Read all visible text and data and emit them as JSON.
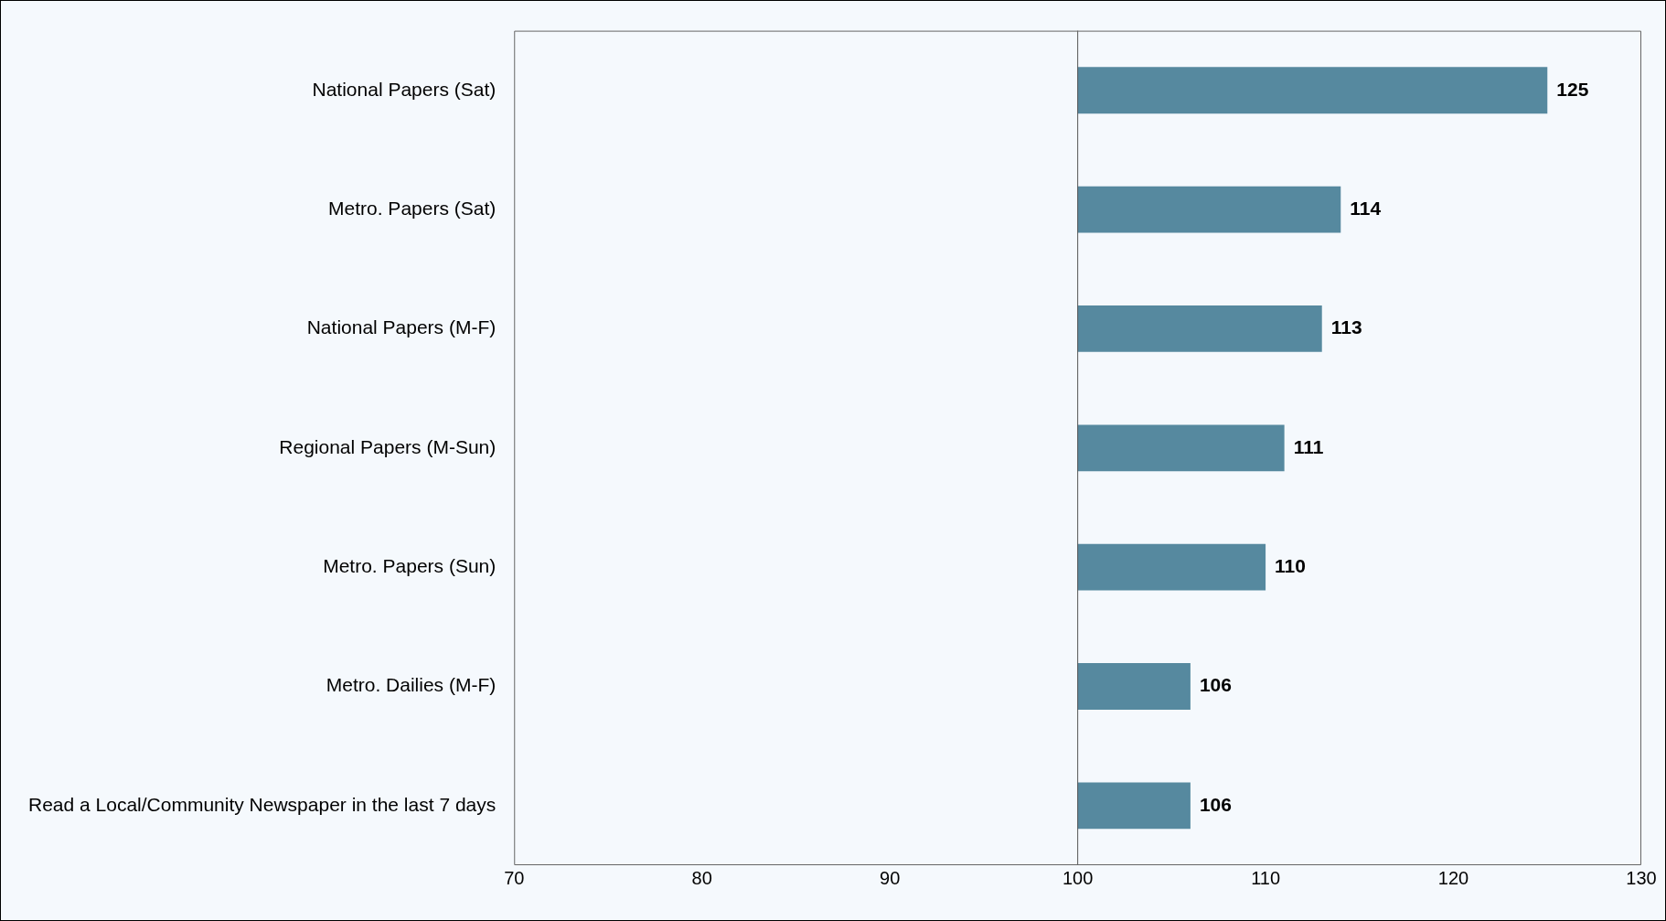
{
  "chart_data": {
    "type": "bar",
    "orientation": "horizontal",
    "categories": [
      "National Papers (Sat)",
      "Metro. Papers (Sat)",
      "National Papers (M-F)",
      "Regional Papers (M-Sun)",
      "Metro. Papers (Sun)",
      "Metro. Dailies (M-F)",
      "Read a Local/Community Newspaper in the last 7 days"
    ],
    "base": [
      100,
      100,
      100,
      100,
      100,
      100,
      100
    ],
    "values": [
      25,
      14,
      13,
      11,
      10,
      6,
      6
    ],
    "value_labels": [
      "125",
      "114",
      "113",
      "111",
      "110",
      "106",
      "106"
    ],
    "color": "#56899f",
    "xlim": [
      70,
      130
    ],
    "xticks": [
      70,
      80,
      90,
      100,
      110,
      120,
      130
    ],
    "ref_lines": [
      {
        "axis": "x",
        "value": 100,
        "color": "#555555"
      }
    ],
    "grid": false,
    "legend": false
  }
}
